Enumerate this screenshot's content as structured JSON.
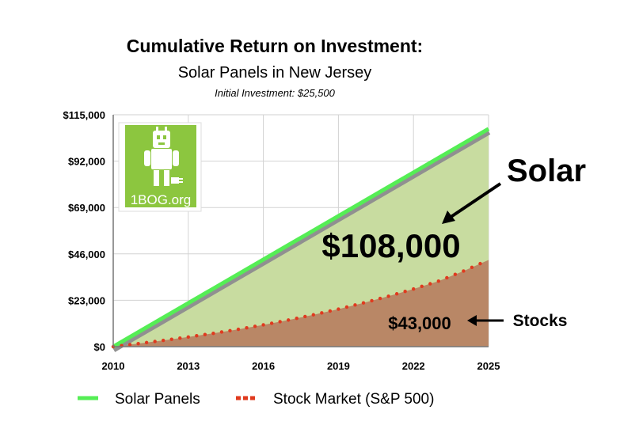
{
  "chart_data": {
    "type": "area",
    "title": "Cumulative Return on Investment:",
    "subtitle": "Solar Panels in New Jersey",
    "note": "Initial Investment: $25,500",
    "x": [
      2010,
      2011,
      2012,
      2013,
      2014,
      2015,
      2016,
      2017,
      2018,
      2019,
      2020,
      2021,
      2022,
      2023,
      2024,
      2025
    ],
    "xticks": [
      "2010",
      "2013",
      "2016",
      "2019",
      "2022",
      "2025"
    ],
    "yticks": [
      "$0",
      "$23,000",
      "$46,000",
      "$69,000",
      "$92,000",
      "$115,000"
    ],
    "ylim": [
      0,
      115000
    ],
    "xlim": [
      2010,
      2025
    ],
    "grid": true,
    "legend_position": "bottom",
    "series": [
      {
        "name": "Solar Panels",
        "color": "#55ee55",
        "fill": "#c8dca0",
        "values": [
          0,
          7200,
          14400,
          21600,
          28800,
          36000,
          43200,
          50400,
          57600,
          64800,
          72000,
          79200,
          86400,
          93600,
          100800,
          108000
        ]
      },
      {
        "name": "Stock Market (S&P 500)",
        "color": "#e03a1e",
        "fill": "#b98766",
        "values": [
          0,
          1500,
          3100,
          4800,
          6600,
          8600,
          10800,
          13200,
          15800,
          18600,
          21700,
          25000,
          28600,
          32500,
          37500,
          43000
        ]
      }
    ],
    "annotations": {
      "solar_label": "Solar",
      "solar_value": "$108,000",
      "stocks_label": "Stocks",
      "stocks_value": "$43,000"
    },
    "logo_text": "1BOG.org"
  }
}
